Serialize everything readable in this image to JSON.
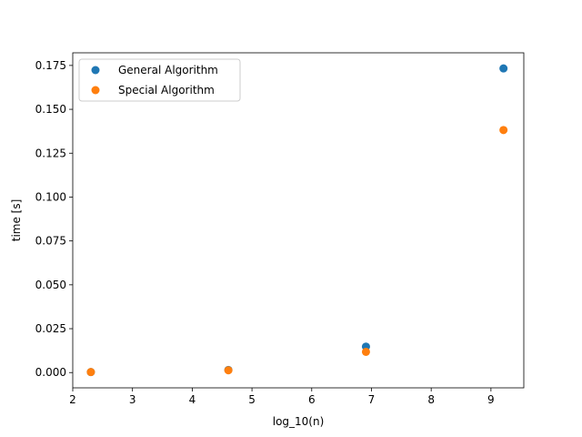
{
  "chart_data": {
    "type": "scatter",
    "title": "",
    "xlabel": "log_10(n)",
    "ylabel": "time [s]",
    "xlim": [
      2.0,
      9.55
    ],
    "ylim": [
      -0.0087,
      0.1822
    ],
    "xticks": [
      2,
      3,
      4,
      5,
      6,
      7,
      8,
      9
    ],
    "yticks": [
      0.0,
      0.025,
      0.05,
      0.075,
      0.1,
      0.125,
      0.15,
      0.175
    ],
    "xtick_labels": [
      "2",
      "3",
      "4",
      "5",
      "6",
      "7",
      "8",
      "9"
    ],
    "ytick_labels": [
      "0.000",
      "0.025",
      "0.050",
      "0.075",
      "0.100",
      "0.125",
      "0.150",
      "0.175"
    ],
    "grid": false,
    "legend": "top-left",
    "series": [
      {
        "name": "General Algorithm",
        "color": "#1f77b4",
        "x": [
          2.303,
          4.605,
          6.908,
          9.21
        ],
        "y": [
          0.0003,
          0.0015,
          0.0148,
          0.1733
        ]
      },
      {
        "name": "Special Algorithm",
        "color": "#ff7f0e",
        "x": [
          2.303,
          4.605,
          6.908,
          9.21
        ],
        "y": [
          0.0003,
          0.0013,
          0.0118,
          0.1382
        ]
      }
    ]
  }
}
